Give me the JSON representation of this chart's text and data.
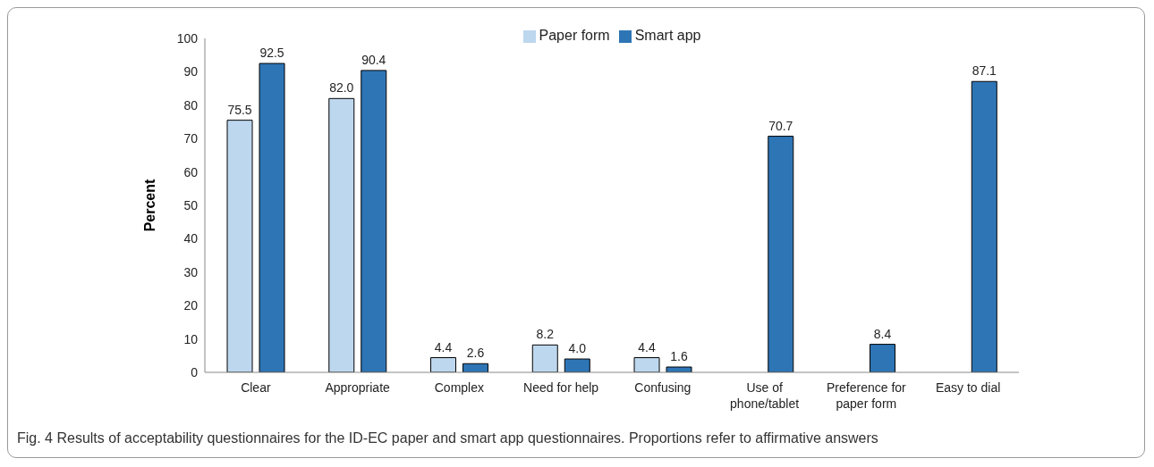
{
  "chart_data": {
    "type": "bar",
    "ylabel": "Percent",
    "categories": [
      "Clear",
      "Appropriate",
      "Complex",
      "Need for help",
      "Confusing",
      "Use of phone/tablet",
      "Preference for paper form",
      "Easy to dial"
    ],
    "series": [
      {
        "name": "Paper form",
        "color": "#bdd7ee",
        "values": [
          75.5,
          82.0,
          4.4,
          8.2,
          4.4,
          null,
          null,
          null
        ],
        "value_labels": [
          "75.5",
          "82.0",
          "4.4",
          "8.2",
          "4.4",
          null,
          null,
          null
        ]
      },
      {
        "name": "Smart app",
        "color": "#2e75b6",
        "values": [
          92.5,
          90.4,
          2.6,
          4.0,
          1.6,
          70.7,
          8.4,
          87.1
        ],
        "value_labels": [
          "92.5",
          "90.4",
          "2.6",
          "4.0",
          "1.6",
          "70.7",
          "8.4",
          "87.1"
        ]
      }
    ],
    "ylim": [
      0,
      100
    ],
    "yticks": [
      0,
      10,
      20,
      30,
      40,
      50,
      60,
      70,
      80,
      90,
      100
    ],
    "grid": false,
    "legend": "top",
    "annotations": [
      "Fig. 4 Results of acceptability questionnaires for the ID-EC paper and smart app questionnaires. Proportions refer to affirmative answers"
    ]
  }
}
